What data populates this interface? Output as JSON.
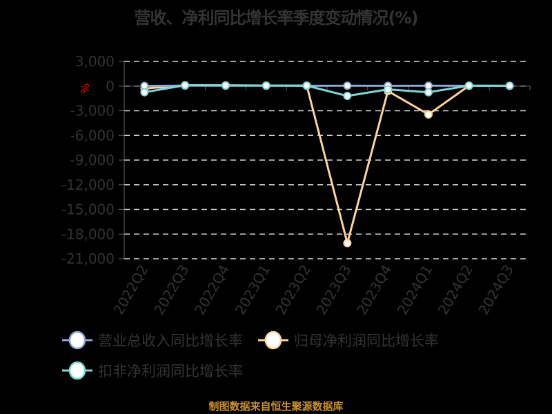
{
  "title": "营收、净利同比增长率季度变动情况(%)",
  "footer": "制图数据来自恒生聚源数据库",
  "y_unit_label": "%",
  "colors": {
    "revenue": "#8ea6d8",
    "parent_profit": "#ffd39b",
    "deducted_profit": "#7fd6d6",
    "text": "#333333",
    "footer": "#c8922a",
    "unit": "#ff0000"
  },
  "legend": [
    {
      "label": "营业总收入同比增长率",
      "color": "#8ea6d8"
    },
    {
      "label": "归母净利润同比增长率",
      "color": "#ffd39b"
    },
    {
      "label": "扣非净利润同比增长率",
      "color": "#7fd6d6"
    }
  ],
  "chart_data": {
    "type": "line",
    "title": "营收、净利同比增长率季度变动情况(%)",
    "xlabel": "",
    "ylabel": "%",
    "categories": [
      "2022Q2",
      "2022Q3",
      "2022Q4",
      "2023Q1",
      "2023Q2",
      "2023Q3",
      "2023Q4",
      "2024Q1",
      "2024Q2",
      "2024Q3"
    ],
    "y_ticks": [
      "3,000",
      "0",
      "-3,000",
      "-6,000",
      "-9,000",
      "-12,000",
      "-15,000",
      "-18,000",
      "-21,000"
    ],
    "ylim": [
      -21000,
      3000
    ],
    "grid": true,
    "legend_position": "bottom",
    "series": [
      {
        "name": "营业总收入同比增长率",
        "values": [
          20,
          50,
          40,
          40,
          30,
          40,
          30,
          40,
          30,
          20
        ]
      },
      {
        "name": "归母净利润同比增长率",
        "values": [
          -300,
          100,
          80,
          60,
          50,
          -19100,
          -600,
          -3450,
          50,
          null
        ]
      },
      {
        "name": "扣非净利润同比增长率",
        "values": [
          -750,
          100,
          80,
          60,
          50,
          -1200,
          -400,
          -750,
          50,
          40
        ]
      }
    ]
  }
}
